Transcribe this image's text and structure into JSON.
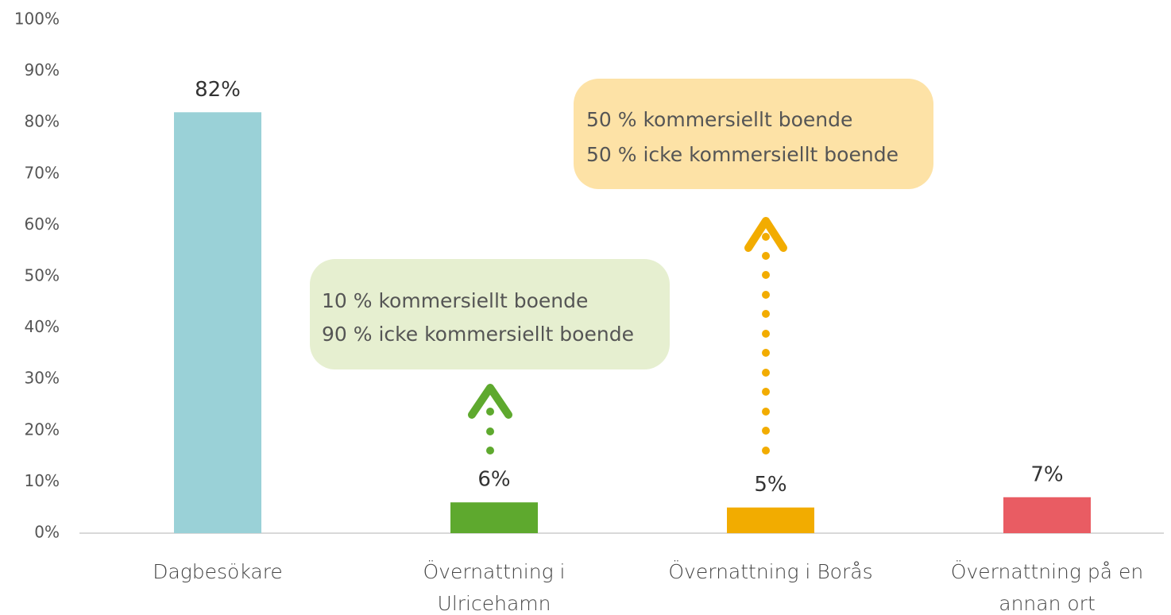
{
  "chart_data": {
    "type": "bar",
    "categories": [
      "Dagbesökare",
      "Övernattning i Ulricehamn",
      "Övernattning i Borås",
      "Övernattning på en annan ort"
    ],
    "values": [
      82,
      6,
      5,
      7
    ],
    "value_labels": [
      "82%",
      "6%",
      "5%",
      "7%"
    ],
    "colors": [
      "#9ad1d7",
      "#5ea92e",
      "#f2ac00",
      "#e95c63"
    ],
    "ylim": [
      0,
      100
    ],
    "yticks": [
      {
        "value": 0,
        "label": "0%"
      },
      {
        "value": 10,
        "label": "10%"
      },
      {
        "value": 20,
        "label": "20%"
      },
      {
        "value": 30,
        "label": "30%"
      },
      {
        "value": 40,
        "label": "40%"
      },
      {
        "value": 50,
        "label": "50%"
      },
      {
        "value": 60,
        "label": "60%"
      },
      {
        "value": 70,
        "label": "70%"
      },
      {
        "value": 80,
        "label": "80%"
      },
      {
        "value": 90,
        "label": "90%"
      },
      {
        "value": 100,
        "label": "100%"
      }
    ],
    "annotations": [
      {
        "lines": [
          "10 % kommersiellt boende",
          "90 % icke kommersiellt boende"
        ],
        "color": "#e6efd0"
      },
      {
        "lines": [
          "50 % kommersiellt boende",
          "50 % icke kommersiellt boende"
        ],
        "color": "#fde2a6"
      }
    ]
  }
}
